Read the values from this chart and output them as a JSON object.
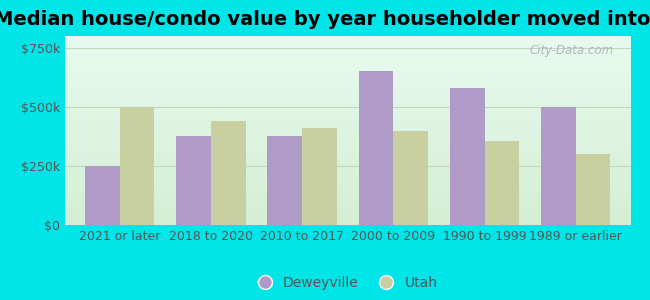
{
  "title": "Median house/condo value by year householder moved into unit",
  "categories": [
    "2021 or later",
    "2018 to 2020",
    "2010 to 2017",
    "2000 to 2009",
    "1990 to 1999",
    "1989 or earlier"
  ],
  "deweyville": [
    250000,
    375000,
    375000,
    650000,
    580000,
    500000
  ],
  "utah": [
    500000,
    440000,
    410000,
    400000,
    355000,
    300000
  ],
  "deweyville_color": "#b09ac8",
  "utah_color": "#c8cfa0",
  "background_outer": "#00e5e8",
  "background_inner_grad_top": "#e8faf0",
  "background_inner_grad_bottom": "#d4efd4",
  "yticks": [
    0,
    250000,
    500000,
    750000
  ],
  "ylim": [
    0,
    800000
  ],
  "bar_width": 0.38,
  "legend_deweyville": "Deweyville",
  "legend_utah": "Utah",
  "title_fontsize": 14,
  "tick_fontsize": 9,
  "legend_fontsize": 10,
  "watermark": "City-Data.com",
  "grid_color": "#c0d8c0",
  "tick_color": "#555555"
}
